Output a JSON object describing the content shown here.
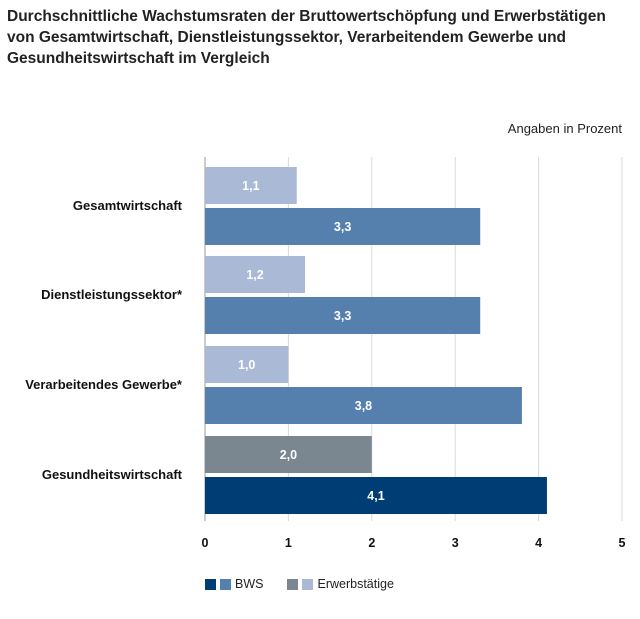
{
  "title_lines": [
    "Durchschnittliche Wachstumsraten der Bruttowertschöpfung und Erwerbstätigen",
    "von Gesamtwirtschaft, Dienstleistungssektor, Verarbeitendem Gewerbe und",
    "Gesundheitswirtschaft im Vergleich"
  ],
  "unit_note": "Angaben in Prozent",
  "colors": {
    "bws": "#5580ad",
    "bws_health": "#003d74",
    "erwerbstaetige": "#a9b9d6",
    "erwerbstaetige_health": "#7a8791",
    "grid": "#d9d9d9",
    "axis": "#aaaaaa"
  },
  "legend": {
    "bws_label": "BWS",
    "erwerbstaetige_label": "Erwerbstätige"
  },
  "chart_data": {
    "type": "bar",
    "orientation": "horizontal",
    "title": "Durchschnittliche Wachstumsraten der Bruttowertschöpfung und Erwerbstätigen von Gesamtwirtschaft, Dienstleistungssektor, Verarbeitendem Gewerbe und Gesundheitswirtschaft im Vergleich",
    "categories": [
      "Gesamtwirtschaft",
      "Dienstleistungssektor*",
      "Verarbeitendes Gewerbe*",
      "Gesundheitswirtschaft"
    ],
    "series": [
      {
        "name": "Erwerbstätige",
        "values": [
          1.1,
          1.2,
          1.0,
          2.0
        ],
        "labels": [
          "1,1",
          "1,2",
          "1,0",
          "2,0"
        ]
      },
      {
        "name": "BWS",
        "values": [
          3.3,
          3.3,
          3.8,
          4.1
        ],
        "labels": [
          "3,3",
          "3,3",
          "3,8",
          "4,1"
        ]
      }
    ],
    "xlim": [
      0,
      5
    ],
    "ticks": [
      "0",
      "1",
      "2",
      "3",
      "4",
      "5"
    ],
    "grid": true,
    "legend_position": "bottom-left",
    "highlight_category": "Gesundheitswirtschaft"
  }
}
